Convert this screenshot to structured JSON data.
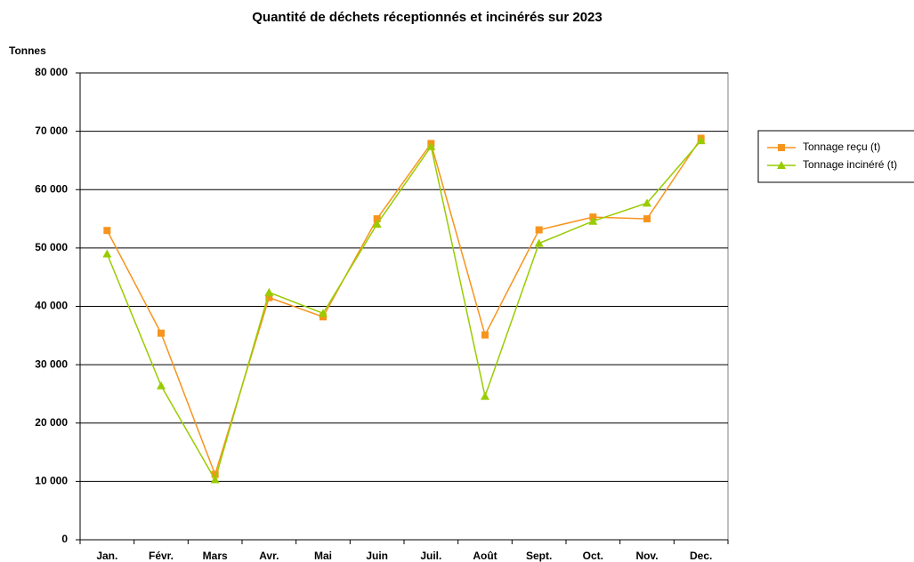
{
  "chart_data": {
    "type": "line",
    "title": "Quantité de déchets réceptionnés et incinérés sur 2023",
    "y_label": "Tonnes",
    "categories": [
      "Jan.",
      "Févr.",
      "Mars",
      "Avr.",
      "Mai",
      "Juin",
      "Juil.",
      "Août",
      "Sept.",
      "Oct.",
      "Nov.",
      "Dec."
    ],
    "series": [
      {
        "name": "Tonnage reçu (t)",
        "color": "#f7941d",
        "marker": "square",
        "values": [
          53000,
          35400,
          11200,
          41500,
          38200,
          55000,
          67900,
          35100,
          53100,
          55300,
          55000,
          68800
        ]
      },
      {
        "name": "Tonnage incinéré (t)",
        "color": "#99cc00",
        "marker": "triangle",
        "values": [
          49000,
          26400,
          10300,
          42400,
          38800,
          54100,
          67400,
          24600,
          50800,
          54600,
          57700,
          68400
        ]
      }
    ],
    "ylim": [
      0,
      80000
    ],
    "yticks": [
      0,
      {
        "value": 10000,
        "label": "10 000"
      },
      {
        "value": 20000,
        "label": "20 000"
      },
      {
        "value": 30000,
        "label": "30 000"
      },
      {
        "value": 40000,
        "label": "40 000"
      },
      {
        "value": 50000,
        "label": "50 000"
      },
      {
        "value": 60000,
        "label": "60 000"
      },
      {
        "value": 70000,
        "label": "70 000"
      },
      {
        "value": 80000,
        "label": "80 000"
      }
    ],
    "grid": true,
    "legend": "right"
  }
}
